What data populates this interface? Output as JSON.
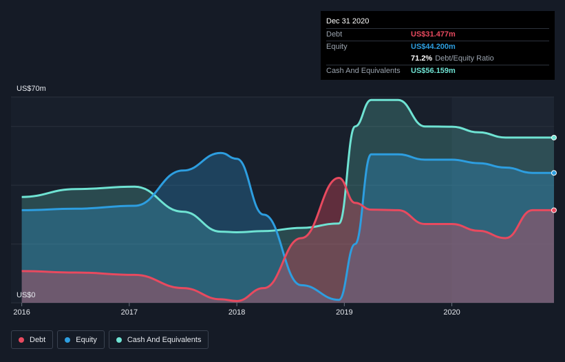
{
  "tooltip": {
    "date": "Dec 31 2020",
    "debt_label": "Debt",
    "debt_value": "US$31.477m",
    "equity_label": "Equity",
    "equity_value": "US$44.200m",
    "ratio_pct": "71.2%",
    "ratio_label": "Debt/Equity Ratio",
    "cash_label": "Cash And Equivalents",
    "cash_value": "US$56.159m"
  },
  "legend": {
    "debt": "Debt",
    "equity": "Equity",
    "cash": "Cash And Equivalents"
  },
  "colors": {
    "background": "#151b26",
    "debt": "#e84a5f",
    "equity": "#2d9ee0",
    "cash": "#6fe3d3"
  },
  "chart_data": {
    "type": "area",
    "ylabel_top": "US$70m",
    "ylabel_bottom": "US$0",
    "ylim": [
      0,
      70
    ],
    "xlim": [
      2015.9,
      2020.95
    ],
    "xticks": [
      {
        "value": 2016,
        "label": "2016"
      },
      {
        "value": 2017,
        "label": "2017"
      },
      {
        "value": 2018,
        "label": "2018"
      },
      {
        "value": 2019,
        "label": "2019"
      },
      {
        "value": 2020,
        "label": "2020"
      }
    ],
    "gridlines": [
      0,
      20,
      40,
      60,
      70
    ],
    "highlight_x": 2020.0,
    "series": [
      {
        "name": "Debt",
        "key": "debt",
        "x": [
          2016.0,
          2016.5,
          2017.05,
          2017.5,
          2017.85,
          2018.0,
          2018.25,
          2018.6,
          2018.95,
          2019.1,
          2019.25,
          2019.5,
          2019.75,
          2020.0,
          2020.25,
          2020.5,
          2020.75,
          2020.95
        ],
        "y": [
          10.8,
          10.3,
          9.5,
          5.0,
          1.2,
          0.6,
          5.0,
          22.0,
          42.5,
          34.0,
          31.7,
          31.5,
          26.8,
          26.8,
          24.5,
          22.0,
          31.5,
          31.5
        ]
      },
      {
        "name": "Equity",
        "key": "equity",
        "x": [
          2016.0,
          2016.5,
          2017.05,
          2017.5,
          2017.85,
          2018.0,
          2018.25,
          2018.6,
          2018.95,
          2019.1,
          2019.25,
          2019.5,
          2019.75,
          2020.0,
          2020.25,
          2020.5,
          2020.75,
          2020.95
        ],
        "y": [
          31.5,
          32.0,
          33.0,
          45.0,
          51.0,
          49.0,
          30.0,
          6.0,
          1.0,
          20.0,
          50.5,
          50.5,
          48.7,
          48.7,
          47.5,
          46.0,
          44.2,
          44.2
        ]
      },
      {
        "name": "Cash And Equivalents",
        "key": "cash",
        "x": [
          2016.0,
          2016.5,
          2017.05,
          2017.5,
          2017.85,
          2018.0,
          2018.25,
          2018.6,
          2018.95,
          2019.1,
          2019.25,
          2019.5,
          2019.75,
          2020.0,
          2020.25,
          2020.5,
          2020.75,
          2020.95
        ],
        "y": [
          36.0,
          38.7,
          39.5,
          31.0,
          24.2,
          24.0,
          24.4,
          25.5,
          27.0,
          60.0,
          69.0,
          69.0,
          60.0,
          59.9,
          58.0,
          56.2,
          56.2,
          56.2
        ]
      }
    ]
  }
}
